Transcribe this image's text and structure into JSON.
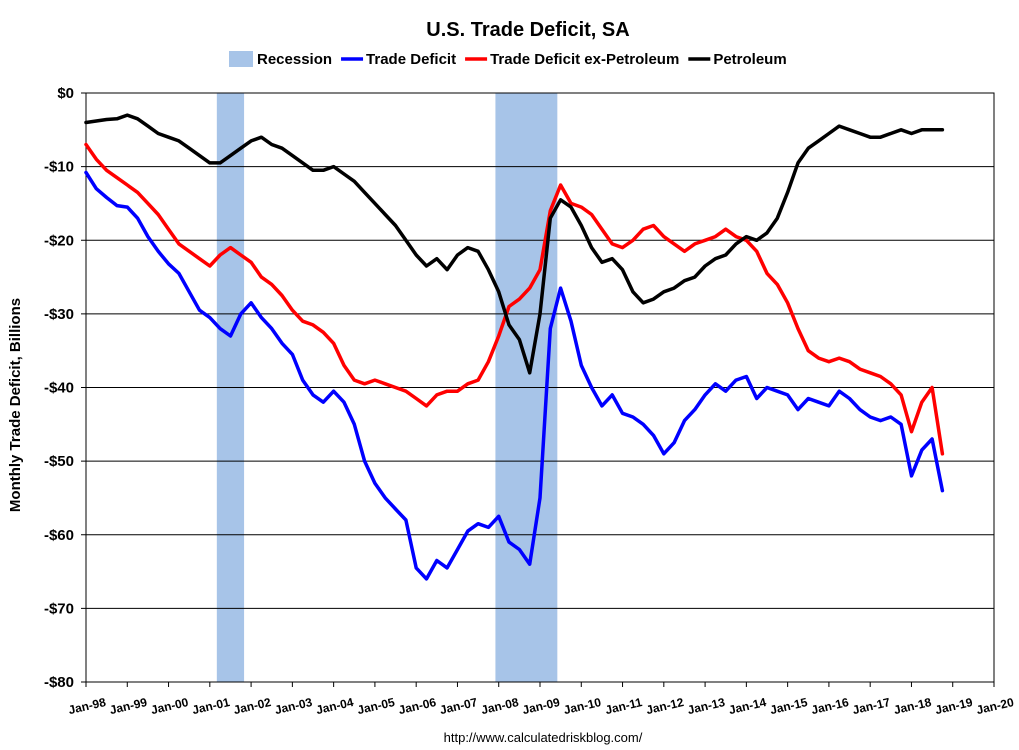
{
  "chart_data": {
    "type": "line",
    "title": "U.S. Trade Deficit, SA",
    "ylabel": "Monthly Trade Deficit, Billions",
    "xlabel": "",
    "ylim": [
      -80,
      0
    ],
    "y_ticks": [
      0,
      -10,
      -20,
      -30,
      -40,
      -50,
      -60,
      -70,
      -80
    ],
    "y_tick_labels": [
      "$0",
      "-$10",
      "-$20",
      "-$30",
      "-$40",
      "-$50",
      "-$60",
      "-$70",
      "-$80"
    ],
    "x_tick_labels": [
      "Jan-98",
      "Jan-99",
      "Jan-00",
      "Jan-01",
      "Jan-02",
      "Jan-03",
      "Jan-04",
      "Jan-05",
      "Jan-06",
      "Jan-07",
      "Jan-08",
      "Jan-09",
      "Jan-10",
      "Jan-11",
      "Jan-12",
      "Jan-13",
      "Jan-14",
      "Jan-15",
      "Jan-16",
      "Jan-17",
      "Jan-18",
      "Jan-19",
      "Jan-20"
    ],
    "grid": "horizontal",
    "legend_placement": "top",
    "source": "http://www.calculatedriskblog.com/",
    "recessions": [
      {
        "start": 2001.17,
        "end": 2001.83
      },
      {
        "start": 2007.92,
        "end": 2009.42
      }
    ],
    "series": [
      {
        "name": "Recession",
        "role": "recession",
        "color": "#a7c4e8"
      },
      {
        "name": "Trade Deficit",
        "color": "#0000ff",
        "points": [
          [
            1998.0,
            -10.8
          ],
          [
            1998.25,
            -13.0
          ],
          [
            1998.5,
            -14.2
          ],
          [
            1998.75,
            -15.3
          ],
          [
            1999.0,
            -15.5
          ],
          [
            1999.25,
            -17.0
          ],
          [
            1999.5,
            -19.5
          ],
          [
            1999.75,
            -21.5
          ],
          [
            2000.0,
            -23.2
          ],
          [
            2000.25,
            -24.5
          ],
          [
            2000.5,
            -27.0
          ],
          [
            2000.75,
            -29.5
          ],
          [
            2001.0,
            -30.5
          ],
          [
            2001.25,
            -32.0
          ],
          [
            2001.5,
            -33.0
          ],
          [
            2001.75,
            -30.0
          ],
          [
            2002.0,
            -28.5
          ],
          [
            2002.25,
            -30.5
          ],
          [
            2002.5,
            -32.0
          ],
          [
            2002.75,
            -34.0
          ],
          [
            2003.0,
            -35.5
          ],
          [
            2003.25,
            -39.0
          ],
          [
            2003.5,
            -41.0
          ],
          [
            2003.75,
            -42.0
          ],
          [
            2004.0,
            -40.5
          ],
          [
            2004.25,
            -42.0
          ],
          [
            2004.5,
            -45.0
          ],
          [
            2004.75,
            -50.0
          ],
          [
            2005.0,
            -53.0
          ],
          [
            2005.25,
            -55.0
          ],
          [
            2005.5,
            -56.5
          ],
          [
            2005.75,
            -58.0
          ],
          [
            2006.0,
            -64.5
          ],
          [
            2006.25,
            -66.0
          ],
          [
            2006.5,
            -63.5
          ],
          [
            2006.75,
            -64.5
          ],
          [
            2007.0,
            -62.0
          ],
          [
            2007.25,
            -59.5
          ],
          [
            2007.5,
            -58.5
          ],
          [
            2007.75,
            -59.0
          ],
          [
            2008.0,
            -57.5
          ],
          [
            2008.25,
            -61.0
          ],
          [
            2008.5,
            -62.0
          ],
          [
            2008.75,
            -64.0
          ],
          [
            2009.0,
            -55.0
          ],
          [
            2009.25,
            -32.0
          ],
          [
            2009.5,
            -26.5
          ],
          [
            2009.75,
            -31.0
          ],
          [
            2010.0,
            -37.0
          ],
          [
            2010.25,
            -40.0
          ],
          [
            2010.5,
            -42.5
          ],
          [
            2010.75,
            -41.0
          ],
          [
            2011.0,
            -43.5
          ],
          [
            2011.25,
            -44.0
          ],
          [
            2011.5,
            -45.0
          ],
          [
            2011.75,
            -46.5
          ],
          [
            2012.0,
            -49.0
          ],
          [
            2012.25,
            -47.5
          ],
          [
            2012.5,
            -44.5
          ],
          [
            2012.75,
            -43.0
          ],
          [
            2013.0,
            -41.0
          ],
          [
            2013.25,
            -39.5
          ],
          [
            2013.5,
            -40.5
          ],
          [
            2013.75,
            -39.0
          ],
          [
            2014.0,
            -38.5
          ],
          [
            2014.25,
            -41.5
          ],
          [
            2014.5,
            -40.0
          ],
          [
            2014.75,
            -40.5
          ],
          [
            2015.0,
            -41.0
          ],
          [
            2015.25,
            -43.0
          ],
          [
            2015.5,
            -41.5
          ],
          [
            2015.75,
            -42.0
          ],
          [
            2016.0,
            -42.5
          ],
          [
            2016.25,
            -40.5
          ],
          [
            2016.5,
            -41.5
          ],
          [
            2016.75,
            -43.0
          ],
          [
            2017.0,
            -44.0
          ],
          [
            2017.25,
            -44.5
          ],
          [
            2017.5,
            -44.0
          ],
          [
            2017.75,
            -45.0
          ],
          [
            2018.0,
            -52.0
          ],
          [
            2018.25,
            -48.5
          ],
          [
            2018.5,
            -47.0
          ],
          [
            2018.75,
            -54.0
          ]
        ]
      },
      {
        "name": "Trade Deficit ex-Petroleum",
        "color": "#ff0000",
        "points": [
          [
            1998.0,
            -7.0
          ],
          [
            1998.25,
            -9.0
          ],
          [
            1998.5,
            -10.5
          ],
          [
            1998.75,
            -11.5
          ],
          [
            1999.0,
            -12.5
          ],
          [
            1999.25,
            -13.5
          ],
          [
            1999.5,
            -15.0
          ],
          [
            1999.75,
            -16.5
          ],
          [
            2000.0,
            -18.5
          ],
          [
            2000.25,
            -20.5
          ],
          [
            2000.5,
            -21.5
          ],
          [
            2000.75,
            -22.5
          ],
          [
            2001.0,
            -23.5
          ],
          [
            2001.25,
            -22.0
          ],
          [
            2001.5,
            -21.0
          ],
          [
            2001.75,
            -22.0
          ],
          [
            2002.0,
            -23.0
          ],
          [
            2002.25,
            -25.0
          ],
          [
            2002.5,
            -26.0
          ],
          [
            2002.75,
            -27.5
          ],
          [
            2003.0,
            -29.5
          ],
          [
            2003.25,
            -31.0
          ],
          [
            2003.5,
            -31.5
          ],
          [
            2003.75,
            -32.5
          ],
          [
            2004.0,
            -34.0
          ],
          [
            2004.25,
            -37.0
          ],
          [
            2004.5,
            -39.0
          ],
          [
            2004.75,
            -39.5
          ],
          [
            2005.0,
            -39.0
          ],
          [
            2005.25,
            -39.5
          ],
          [
            2005.5,
            -40.0
          ],
          [
            2005.75,
            -40.5
          ],
          [
            2006.0,
            -41.5
          ],
          [
            2006.25,
            -42.5
          ],
          [
            2006.5,
            -41.0
          ],
          [
            2006.75,
            -40.5
          ],
          [
            2007.0,
            -40.5
          ],
          [
            2007.25,
            -39.5
          ],
          [
            2007.5,
            -39.0
          ],
          [
            2007.75,
            -36.5
          ],
          [
            2008.0,
            -33.0
          ],
          [
            2008.25,
            -29.0
          ],
          [
            2008.5,
            -28.0
          ],
          [
            2008.75,
            -26.5
          ],
          [
            2009.0,
            -24.0
          ],
          [
            2009.25,
            -16.0
          ],
          [
            2009.5,
            -12.5
          ],
          [
            2009.75,
            -15.0
          ],
          [
            2010.0,
            -15.5
          ],
          [
            2010.25,
            -16.5
          ],
          [
            2010.5,
            -18.5
          ],
          [
            2010.75,
            -20.5
          ],
          [
            2011.0,
            -21.0
          ],
          [
            2011.25,
            -20.0
          ],
          [
            2011.5,
            -18.5
          ],
          [
            2011.75,
            -18.0
          ],
          [
            2012.0,
            -19.5
          ],
          [
            2012.25,
            -20.5
          ],
          [
            2012.5,
            -21.5
          ],
          [
            2012.75,
            -20.5
          ],
          [
            2013.0,
            -20.0
          ],
          [
            2013.25,
            -19.5
          ],
          [
            2013.5,
            -18.5
          ],
          [
            2013.75,
            -19.5
          ],
          [
            2014.0,
            -20.0
          ],
          [
            2014.25,
            -21.5
          ],
          [
            2014.5,
            -24.5
          ],
          [
            2014.75,
            -26.0
          ],
          [
            2015.0,
            -28.5
          ],
          [
            2015.25,
            -32.0
          ],
          [
            2015.5,
            -35.0
          ],
          [
            2015.75,
            -36.0
          ],
          [
            2016.0,
            -36.5
          ],
          [
            2016.25,
            -36.0
          ],
          [
            2016.5,
            -36.5
          ],
          [
            2016.75,
            -37.5
          ],
          [
            2017.0,
            -38.0
          ],
          [
            2017.25,
            -38.5
          ],
          [
            2017.5,
            -39.5
          ],
          [
            2017.75,
            -41.0
          ],
          [
            2018.0,
            -46.0
          ],
          [
            2018.25,
            -42.0
          ],
          [
            2018.5,
            -40.0
          ],
          [
            2018.75,
            -49.0
          ]
        ]
      },
      {
        "name": "Petroleum",
        "color": "#000000",
        "points": [
          [
            1998.0,
            -4.0
          ],
          [
            1998.25,
            -3.8
          ],
          [
            1998.5,
            -3.6
          ],
          [
            1998.75,
            -3.5
          ],
          [
            1999.0,
            -3.0
          ],
          [
            1999.25,
            -3.5
          ],
          [
            1999.5,
            -4.5
          ],
          [
            1999.75,
            -5.5
          ],
          [
            2000.0,
            -6.0
          ],
          [
            2000.25,
            -6.5
          ],
          [
            2000.5,
            -7.5
          ],
          [
            2000.75,
            -8.5
          ],
          [
            2001.0,
            -9.5
          ],
          [
            2001.25,
            -9.5
          ],
          [
            2001.5,
            -8.5
          ],
          [
            2001.75,
            -7.5
          ],
          [
            2002.0,
            -6.5
          ],
          [
            2002.25,
            -6.0
          ],
          [
            2002.5,
            -7.0
          ],
          [
            2002.75,
            -7.5
          ],
          [
            2003.0,
            -8.5
          ],
          [
            2003.25,
            -9.5
          ],
          [
            2003.5,
            -10.5
          ],
          [
            2003.75,
            -10.5
          ],
          [
            2004.0,
            -10.0
          ],
          [
            2004.25,
            -11.0
          ],
          [
            2004.5,
            -12.0
          ],
          [
            2004.75,
            -13.5
          ],
          [
            2005.0,
            -15.0
          ],
          [
            2005.25,
            -16.5
          ],
          [
            2005.5,
            -18.0
          ],
          [
            2005.75,
            -20.0
          ],
          [
            2006.0,
            -22.0
          ],
          [
            2006.25,
            -23.5
          ],
          [
            2006.5,
            -22.5
          ],
          [
            2006.75,
            -24.0
          ],
          [
            2007.0,
            -22.0
          ],
          [
            2007.25,
            -21.0
          ],
          [
            2007.5,
            -21.5
          ],
          [
            2007.75,
            -24.0
          ],
          [
            2008.0,
            -27.0
          ],
          [
            2008.25,
            -31.5
          ],
          [
            2008.5,
            -33.5
          ],
          [
            2008.75,
            -38.0
          ],
          [
            2009.0,
            -30.0
          ],
          [
            2009.25,
            -17.0
          ],
          [
            2009.5,
            -14.5
          ],
          [
            2009.75,
            -15.5
          ],
          [
            2010.0,
            -18.0
          ],
          [
            2010.25,
            -21.0
          ],
          [
            2010.5,
            -23.0
          ],
          [
            2010.75,
            -22.5
          ],
          [
            2011.0,
            -24.0
          ],
          [
            2011.25,
            -27.0
          ],
          [
            2011.5,
            -28.5
          ],
          [
            2011.75,
            -28.0
          ],
          [
            2012.0,
            -27.0
          ],
          [
            2012.25,
            -26.5
          ],
          [
            2012.5,
            -25.5
          ],
          [
            2012.75,
            -25.0
          ],
          [
            2013.0,
            -23.5
          ],
          [
            2013.25,
            -22.5
          ],
          [
            2013.5,
            -22.0
          ],
          [
            2013.75,
            -20.5
          ],
          [
            2014.0,
            -19.5
          ],
          [
            2014.25,
            -20.0
          ],
          [
            2014.5,
            -19.0
          ],
          [
            2014.75,
            -17.0
          ],
          [
            2015.0,
            -13.5
          ],
          [
            2015.25,
            -9.5
          ],
          [
            2015.5,
            -7.5
          ],
          [
            2015.75,
            -6.5
          ],
          [
            2016.0,
            -5.5
          ],
          [
            2016.25,
            -4.5
          ],
          [
            2016.5,
            -5.0
          ],
          [
            2016.75,
            -5.5
          ],
          [
            2017.0,
            -6.0
          ],
          [
            2017.25,
            -6.0
          ],
          [
            2017.5,
            -5.5
          ],
          [
            2017.75,
            -5.0
          ],
          [
            2018.0,
            -5.5
          ],
          [
            2018.25,
            -5.0
          ],
          [
            2018.5,
            -5.0
          ],
          [
            2018.75,
            -5.0
          ]
        ]
      }
    ]
  }
}
